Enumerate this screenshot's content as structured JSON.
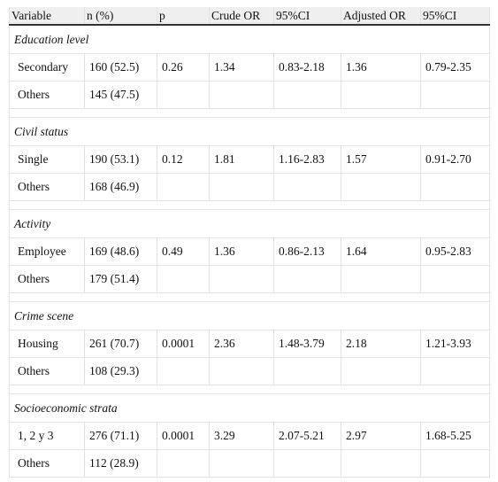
{
  "table": {
    "header": [
      "Variable",
      "n (%)",
      "p",
      "Crude OR",
      "95%CI",
      "Adjusted OR",
      "95%CI"
    ],
    "sections": [
      {
        "title": "Education level",
        "rows": [
          [
            "Secondary",
            "160 (52.5)",
            "0.26",
            "1.34",
            "0.83-2.18",
            "1.36",
            "0.79-2.35"
          ],
          [
            "Others",
            "145 (47.5)"
          ]
        ]
      },
      {
        "title": "Civil status",
        "rows": [
          [
            "Single",
            "190 (53.1)",
            "0.12",
            "1.81",
            "1.16-2.83",
            "1.57",
            "0.91-2.70"
          ],
          [
            "Others",
            "168 (46.9)"
          ]
        ]
      },
      {
        "title": "Activity",
        "rows": [
          [
            "Employee",
            "169 (48.6)",
            "0.49",
            "1.36",
            "0.86-2.13",
            "1.64",
            "0.95-2.83"
          ],
          [
            "Others",
            "179 (51.4)"
          ]
        ]
      },
      {
        "title": "Crime scene",
        "rows": [
          [
            "Housing",
            "261 (70.7)",
            "0.0001",
            "2.36",
            "1.48-3.79",
            "2.18",
            "1.21-3.93"
          ],
          [
            "Others",
            "108 (29.3)"
          ]
        ]
      },
      {
        "title": "Socioeconomic strata",
        "rows": [
          [
            "1, 2 y 3",
            "276 (71.1)",
            "0.0001",
            "3.29",
            "2.07-5.21",
            "2.97",
            "1.68-5.25"
          ],
          [
            "Others",
            "112 (28.9)"
          ]
        ]
      }
    ]
  }
}
